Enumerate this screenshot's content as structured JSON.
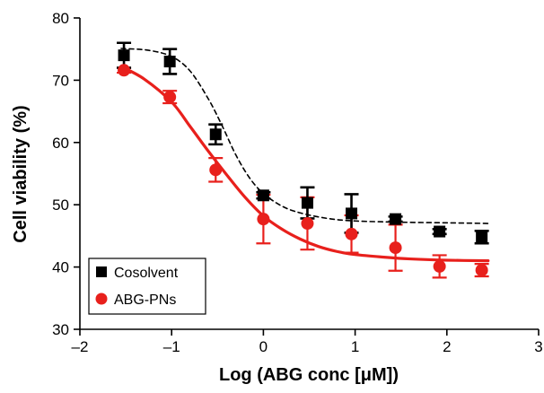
{
  "chart_data": {
    "type": "scatter",
    "title": "",
    "xlabel": "Log (ABG conc [μM])",
    "ylabel": "Cell viability (%)",
    "xlim": [
      -2,
      3
    ],
    "ylim": [
      30,
      80
    ],
    "x_ticks": [
      -2,
      -1,
      0,
      1,
      2,
      3
    ],
    "y_ticks": [
      30,
      40,
      50,
      60,
      70,
      80
    ],
    "x_tick_labels": [
      "–2",
      "–1",
      "0",
      "1",
      "2",
      "3"
    ],
    "y_tick_labels": [
      "30",
      "40",
      "50",
      "60",
      "70",
      "80"
    ],
    "grid": false,
    "legend_position": "bottom-left",
    "series": [
      {
        "name": "Cosolvent",
        "color": "#000000",
        "marker": "square",
        "curve_style": "dashed",
        "x": [
          -1.52,
          -1.02,
          -0.52,
          0.0,
          0.48,
          0.96,
          1.44,
          1.92,
          2.38
        ],
        "y": [
          74.0,
          73.0,
          61.3,
          51.5,
          50.3,
          48.6,
          47.7,
          45.7,
          44.8
        ],
        "error": [
          2.0,
          2.0,
          1.6,
          0.5,
          2.5,
          3.1,
          0.4,
          0.4,
          1.0
        ],
        "fit_x": [
          -1.55,
          -1.25,
          -1.0,
          -0.8,
          -0.6,
          -0.45,
          -0.3,
          -0.15,
          0.0,
          0.2,
          0.4,
          0.7,
          1.0,
          1.5,
          2.0,
          2.45
        ],
        "fit_y": [
          75.1,
          74.8,
          73.8,
          71.5,
          67.0,
          62.7,
          58.0,
          54.3,
          51.8,
          49.8,
          48.7,
          47.8,
          47.4,
          47.2,
          47.1,
          47.0
        ]
      },
      {
        "name": "ABG-PNs",
        "color": "#e8201c",
        "marker": "circle",
        "curve_style": "solid",
        "x": [
          -1.52,
          -1.02,
          -0.52,
          0.0,
          0.48,
          0.96,
          1.44,
          1.92,
          2.38
        ],
        "y": [
          71.6,
          67.3,
          55.6,
          47.7,
          47.0,
          45.3,
          43.1,
          40.1,
          39.5
        ],
        "error": [
          0.4,
          1.0,
          1.9,
          3.9,
          4.2,
          3.0,
          3.7,
          1.8,
          1.0
        ],
        "fit_x": [
          -1.55,
          -1.3,
          -1.0,
          -0.8,
          -0.6,
          -0.4,
          -0.2,
          0.0,
          0.2,
          0.4,
          0.6,
          0.8,
          1.0,
          1.3,
          1.6,
          2.0,
          2.45
        ],
        "fit_y": [
          72.2,
          70.2,
          66.5,
          62.6,
          58.6,
          54.8,
          51.2,
          48.2,
          46.1,
          44.5,
          43.3,
          42.5,
          42.0,
          41.6,
          41.3,
          41.1,
          41.0
        ]
      }
    ]
  }
}
